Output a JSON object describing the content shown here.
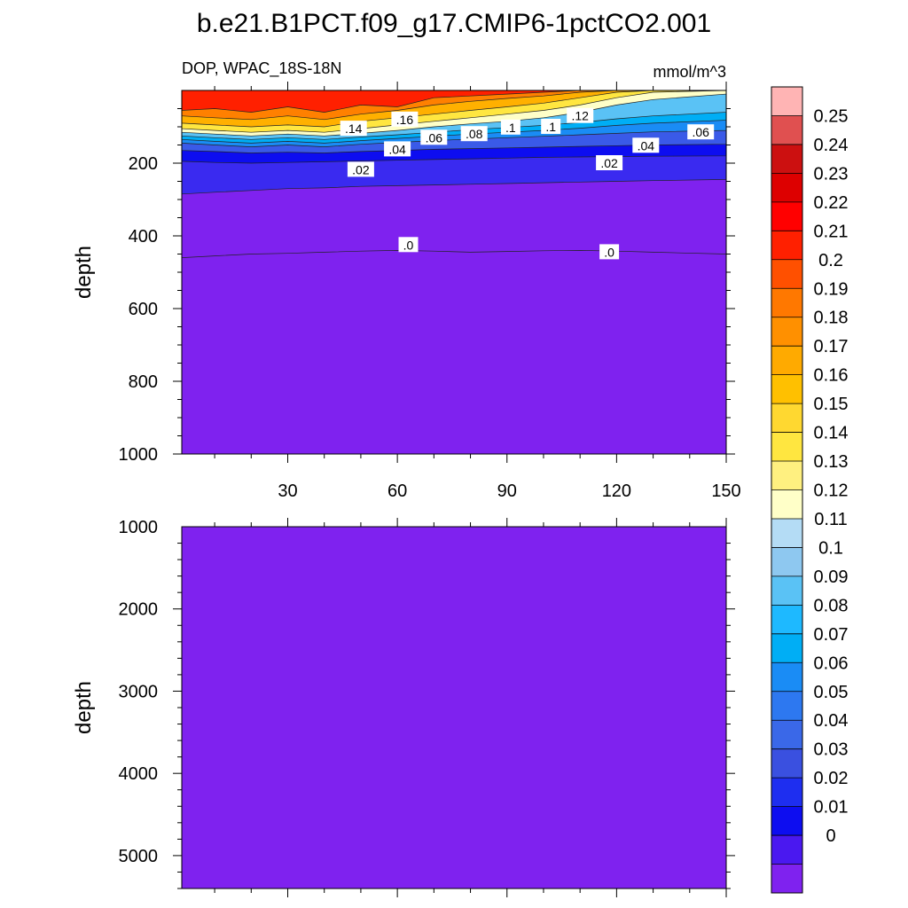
{
  "title": "b.e21.B1PCT.f09_g17.CMIP6-1pctCO2.001",
  "chart_data": [
    {
      "type": "contour",
      "panel": "upper",
      "left_label": "DOP, WPAC_18S-18N",
      "right_label": "mmol/m^3",
      "ylabel": "depth",
      "xlabel": "",
      "xlim": [
        1,
        150
      ],
      "ylim": [
        1000,
        0
      ],
      "x_ticks": [
        30,
        60,
        90,
        120,
        150
      ],
      "x_tick_labels": [
        "30",
        "60",
        "90",
        "120",
        "150"
      ],
      "y_ticks": [
        200,
        400,
        600,
        800,
        1000
      ],
      "y_tick_labels": [
        "200",
        "400",
        "600",
        "800",
        "1000"
      ],
      "fill_color_at_depth": "#7f22ef",
      "series": [
        {
          "name": "0.20",
          "color": "#ff2000",
          "x": [
            1,
            10,
            20,
            30,
            40,
            50,
            60,
            70,
            80,
            90,
            100,
            110,
            120,
            130,
            150
          ],
          "y": [
            55,
            50,
            60,
            45,
            60,
            40,
            45,
            20,
            15,
            10,
            5,
            0,
            0,
            0,
            0
          ]
        },
        {
          "name": "0.18",
          "color": "#ff8000",
          "x": [
            1,
            10,
            20,
            30,
            40,
            50,
            60,
            70,
            80,
            90,
            100,
            110,
            120,
            130,
            150
          ],
          "y": [
            70,
            75,
            80,
            70,
            80,
            65,
            55,
            40,
            30,
            22,
            15,
            5,
            0,
            0,
            0
          ]
        },
        {
          "name": "0.16",
          "color": "#ffb000",
          "x": [
            1,
            10,
            20,
            30,
            40,
            50,
            60,
            70,
            80,
            90,
            100,
            110,
            120,
            130,
            150
          ],
          "y": [
            90,
            95,
            100,
            95,
            100,
            85,
            75,
            65,
            55,
            45,
            35,
            20,
            5,
            0,
            0
          ]
        },
        {
          "name": "0.14",
          "color": "#ffe640",
          "x": [
            1,
            10,
            20,
            30,
            40,
            50,
            60,
            70,
            80,
            90,
            100,
            110,
            120,
            130,
            150
          ],
          "y": [
            105,
            110,
            115,
            110,
            115,
            105,
            95,
            85,
            75,
            65,
            55,
            40,
            20,
            5,
            0
          ]
        },
        {
          "name": "0.12",
          "color": "#ffffc8",
          "x": [
            1,
            10,
            20,
            30,
            40,
            50,
            60,
            70,
            80,
            90,
            100,
            110,
            120,
            130,
            150
          ],
          "y": [
            115,
            120,
            125,
            120,
            125,
            118,
            110,
            100,
            92,
            85,
            75,
            60,
            40,
            25,
            10
          ]
        },
        {
          "name": "0.10",
          "color": "#5ac2f5",
          "x": [
            1,
            10,
            20,
            30,
            40,
            50,
            60,
            70,
            80,
            90,
            100,
            110,
            120,
            130,
            150
          ],
          "y": [
            125,
            130,
            135,
            130,
            135,
            128,
            122,
            115,
            108,
            102,
            96,
            88,
            78,
            70,
            60
          ]
        },
        {
          "name": "0.08",
          "color": "#00aef5",
          "x": [
            1,
            10,
            20,
            30,
            40,
            50,
            60,
            70,
            80,
            90,
            100,
            110,
            120,
            130,
            150
          ],
          "y": [
            135,
            140,
            145,
            140,
            145,
            138,
            132,
            126,
            120,
            115,
            110,
            104,
            96,
            90,
            82
          ]
        },
        {
          "name": "0.06",
          "color": "#1a8cf5",
          "x": [
            1,
            10,
            20,
            30,
            40,
            50,
            60,
            70,
            80,
            90,
            100,
            110,
            120,
            130,
            150
          ],
          "y": [
            145,
            150,
            155,
            150,
            155,
            148,
            143,
            138,
            134,
            130,
            126,
            122,
            118,
            114,
            110
          ]
        },
        {
          "name": "0.04",
          "color": "#3a5ae8",
          "x": [
            1,
            10,
            20,
            30,
            40,
            50,
            60,
            70,
            80,
            90,
            100,
            110,
            120,
            130,
            150
          ],
          "y": [
            165,
            168,
            172,
            170,
            172,
            168,
            165,
            162,
            160,
            158,
            156,
            154,
            152,
            150,
            148
          ]
        },
        {
          "name": "0.02",
          "color": "#0d0df0",
          "x": [
            1,
            10,
            20,
            30,
            40,
            50,
            60,
            70,
            80,
            90,
            100,
            110,
            120,
            130,
            150
          ],
          "y": [
            195,
            198,
            200,
            198,
            196,
            194,
            192,
            190,
            188,
            186,
            184,
            183,
            182,
            181,
            180
          ]
        },
        {
          "name": "0.01",
          "color": "#3a2af0",
          "x": [
            1,
            10,
            20,
            30,
            40,
            50,
            60,
            70,
            80,
            90,
            100,
            110,
            120,
            130,
            150
          ],
          "y": [
            285,
            280,
            275,
            270,
            268,
            264,
            262,
            260,
            258,
            256,
            254,
            252,
            250,
            248,
            245
          ]
        },
        {
          "name": "0",
          "color": "#7f22ef",
          "x": [
            1,
            10,
            20,
            30,
            40,
            50,
            60,
            70,
            80,
            90,
            100,
            110,
            120,
            130,
            150
          ],
          "y": [
            460,
            455,
            450,
            448,
            445,
            442,
            440,
            442,
            445,
            443,
            441,
            440,
            442,
            445,
            450
          ]
        }
      ],
      "contour_labels": [
        {
          "text": ".16",
          "x": 62,
          "y": 80
        },
        {
          "text": ".14",
          "x": 48,
          "y": 105
        },
        {
          "text": ".12",
          "x": 110,
          "y": 70
        },
        {
          "text": ".1",
          "x": 102,
          "y": 100
        },
        {
          "text": ".1",
          "x": 91,
          "y": 102
        },
        {
          "text": ".08",
          "x": 81,
          "y": 120
        },
        {
          "text": ".06",
          "x": 70,
          "y": 130
        },
        {
          "text": ".06",
          "x": 143,
          "y": 115
        },
        {
          "text": ".04",
          "x": 60,
          "y": 162
        },
        {
          "text": ".04",
          "x": 128,
          "y": 152
        },
        {
          "text": ".02",
          "x": 50,
          "y": 218
        },
        {
          "text": ".02",
          "x": 118,
          "y": 200
        },
        {
          "text": ".0",
          "x": 63,
          "y": 425
        },
        {
          "text": ".0",
          "x": 118,
          "y": 445
        }
      ]
    },
    {
      "type": "contour",
      "panel": "lower",
      "ylabel": "depth",
      "xlim": [
        1,
        150
      ],
      "ylim": [
        1000,
        5400
      ],
      "y_ticks": [
        1000,
        2000,
        3000,
        4000,
        5000
      ],
      "y_tick_labels": [
        "1000",
        "2000",
        "3000",
        "4000",
        "5000"
      ],
      "fill_color": "#7f22ef",
      "uniform_value": "0"
    }
  ],
  "colorbar": {
    "labels": [
      "0.25",
      "0.24",
      "0.23",
      "0.22",
      "0.21",
      "0.2",
      "0.19",
      "0.18",
      "0.17",
      "0.16",
      "0.15",
      "0.14",
      "0.13",
      "0.12",
      "0.11",
      "0.1",
      "0.09",
      "0.08",
      "0.07",
      "0.06",
      "0.05",
      "0.04",
      "0.03",
      "0.02",
      "0.01",
      "0"
    ],
    "colors": [
      "#ffb4b4",
      "#e05050",
      "#cc1010",
      "#dd0000",
      "#ff0000",
      "#ff2000",
      "#ff5000",
      "#ff7800",
      "#ff9000",
      "#ffaa00",
      "#ffc000",
      "#ffd830",
      "#ffe640",
      "#fff080",
      "#ffffc8",
      "#b4dcf5",
      "#8ec8f0",
      "#5ac2f5",
      "#1eb9ff",
      "#00aef5",
      "#1a8cf5",
      "#2d78f0",
      "#3a68e8",
      "#3a50e0",
      "#1e2ef0",
      "#0d0df0",
      "#4a18f0",
      "#7f22ef"
    ]
  }
}
